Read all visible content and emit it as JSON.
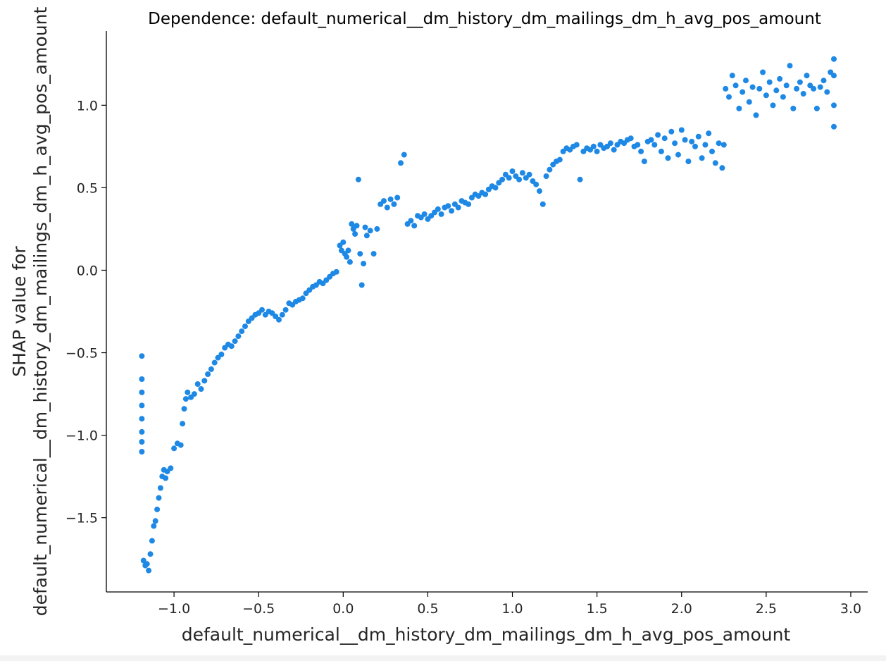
{
  "chart_data": {
    "type": "scatter",
    "title": "Dependence: default_numerical__dm_history_dm_mailings_dm_h_avg_pos_amount",
    "xlabel": "default_numerical__dm_history_dm_mailings_dm_h_avg_pos_amount",
    "ylabel_lines": [
      "SHAP value for",
      "default_numerical__dm_history_dm_mailings_dm_h_avg_pos_amount"
    ],
    "xlim": [
      -1.4,
      3.1
    ],
    "ylim": [
      -1.95,
      1.45
    ],
    "xticks": [
      -1.0,
      -0.5,
      0.0,
      0.5,
      1.0,
      1.5,
      2.0,
      2.5,
      3.0
    ],
    "xtick_labels": [
      "−1.0",
      "−0.5",
      "0.0",
      "0.5",
      "1.0",
      "1.5",
      "2.0",
      "2.5",
      "3.0"
    ],
    "yticks": [
      -1.5,
      -1.0,
      -0.5,
      0.0,
      0.5,
      1.0
    ],
    "ytick_labels": [
      "−1.5",
      "−1.0",
      "−0.5",
      "0.0",
      "0.5",
      "1.0"
    ],
    "grid": false,
    "point_color": "#1e88e5",
    "series": [
      {
        "points": [
          [
            -1.19,
            -0.52
          ],
          [
            -1.19,
            -0.66
          ],
          [
            -1.19,
            -0.74
          ],
          [
            -1.19,
            -0.82
          ],
          [
            -1.19,
            -0.9
          ],
          [
            -1.19,
            -0.98
          ],
          [
            -1.19,
            -1.04
          ],
          [
            -1.19,
            -1.1
          ],
          [
            -1.18,
            -1.76
          ],
          [
            -1.17,
            -1.79
          ],
          [
            -1.16,
            -1.78
          ],
          [
            -1.15,
            -1.82
          ],
          [
            -1.14,
            -1.72
          ],
          [
            -1.13,
            -1.64
          ],
          [
            -1.12,
            -1.55
          ],
          [
            -1.11,
            -1.52
          ],
          [
            -1.1,
            -1.45
          ],
          [
            -1.09,
            -1.38
          ],
          [
            -1.08,
            -1.32
          ],
          [
            -1.07,
            -1.25
          ],
          [
            -1.06,
            -1.21
          ],
          [
            -1.05,
            -1.26
          ],
          [
            -1.04,
            -1.22
          ],
          [
            -1.02,
            -1.2
          ],
          [
            -1.0,
            -1.08
          ],
          [
            -0.98,
            -1.05
          ],
          [
            -0.96,
            -1.06
          ],
          [
            -0.95,
            -0.93
          ],
          [
            -0.94,
            -0.84
          ],
          [
            -0.93,
            -0.78
          ],
          [
            -0.92,
            -0.74
          ],
          [
            -0.9,
            -0.77
          ],
          [
            -0.88,
            -0.75
          ],
          [
            -0.86,
            -0.69
          ],
          [
            -0.84,
            -0.72
          ],
          [
            -0.82,
            -0.67
          ],
          [
            -0.8,
            -0.63
          ],
          [
            -0.78,
            -0.6
          ],
          [
            -0.76,
            -0.56
          ],
          [
            -0.74,
            -0.53
          ],
          [
            -0.72,
            -0.51
          ],
          [
            -0.7,
            -0.47
          ],
          [
            -0.68,
            -0.45
          ],
          [
            -0.66,
            -0.46
          ],
          [
            -0.64,
            -0.43
          ],
          [
            -0.62,
            -0.4
          ],
          [
            -0.6,
            -0.37
          ],
          [
            -0.58,
            -0.34
          ],
          [
            -0.56,
            -0.31
          ],
          [
            -0.54,
            -0.29
          ],
          [
            -0.52,
            -0.27
          ],
          [
            -0.5,
            -0.26
          ],
          [
            -0.48,
            -0.24
          ],
          [
            -0.46,
            -0.27
          ],
          [
            -0.44,
            -0.25
          ],
          [
            -0.42,
            -0.26
          ],
          [
            -0.4,
            -0.28
          ],
          [
            -0.38,
            -0.3
          ],
          [
            -0.36,
            -0.27
          ],
          [
            -0.34,
            -0.24
          ],
          [
            -0.32,
            -0.2
          ],
          [
            -0.3,
            -0.21
          ],
          [
            -0.28,
            -0.19
          ],
          [
            -0.26,
            -0.18
          ],
          [
            -0.24,
            -0.17
          ],
          [
            -0.22,
            -0.14
          ],
          [
            -0.2,
            -0.12
          ],
          [
            -0.18,
            -0.1
          ],
          [
            -0.16,
            -0.09
          ],
          [
            -0.14,
            -0.07
          ],
          [
            -0.12,
            -0.08
          ],
          [
            -0.1,
            -0.06
          ],
          [
            -0.08,
            -0.04
          ],
          [
            -0.06,
            -0.02
          ],
          [
            -0.04,
            -0.01
          ],
          [
            -0.02,
            0.15
          ],
          [
            -0.01,
            0.12
          ],
          [
            0.0,
            0.17
          ],
          [
            0.01,
            0.1
          ],
          [
            0.02,
            0.08
          ],
          [
            0.03,
            0.12
          ],
          [
            0.04,
            0.05
          ],
          [
            0.05,
            0.28
          ],
          [
            0.06,
            0.25
          ],
          [
            0.07,
            0.22
          ],
          [
            0.08,
            0.27
          ],
          [
            0.09,
            0.55
          ],
          [
            0.1,
            0.1
          ],
          [
            0.11,
            -0.09
          ],
          [
            0.12,
            0.04
          ],
          [
            0.13,
            0.26
          ],
          [
            0.14,
            0.21
          ],
          [
            0.16,
            0.24
          ],
          [
            0.18,
            0.1
          ],
          [
            0.2,
            0.25
          ],
          [
            0.22,
            0.4
          ],
          [
            0.24,
            0.42
          ],
          [
            0.26,
            0.38
          ],
          [
            0.28,
            0.43
          ],
          [
            0.3,
            0.4
          ],
          [
            0.32,
            0.44
          ],
          [
            0.34,
            0.65
          ],
          [
            0.36,
            0.7
          ],
          [
            0.38,
            0.28
          ],
          [
            0.4,
            0.3
          ],
          [
            0.42,
            0.27
          ],
          [
            0.44,
            0.33
          ],
          [
            0.46,
            0.32
          ],
          [
            0.48,
            0.34
          ],
          [
            0.5,
            0.31
          ],
          [
            0.52,
            0.33
          ],
          [
            0.54,
            0.35
          ],
          [
            0.56,
            0.37
          ],
          [
            0.58,
            0.34
          ],
          [
            0.6,
            0.38
          ],
          [
            0.62,
            0.39
          ],
          [
            0.64,
            0.36
          ],
          [
            0.66,
            0.4
          ],
          [
            0.68,
            0.38
          ],
          [
            0.7,
            0.42
          ],
          [
            0.72,
            0.41
          ],
          [
            0.74,
            0.4
          ],
          [
            0.76,
            0.44
          ],
          [
            0.78,
            0.46
          ],
          [
            0.8,
            0.45
          ],
          [
            0.82,
            0.47
          ],
          [
            0.84,
            0.46
          ],
          [
            0.86,
            0.49
          ],
          [
            0.88,
            0.51
          ],
          [
            0.9,
            0.5
          ],
          [
            0.92,
            0.53
          ],
          [
            0.94,
            0.55
          ],
          [
            0.96,
            0.58
          ],
          [
            0.98,
            0.56
          ],
          [
            1.0,
            0.6
          ],
          [
            1.02,
            0.57
          ],
          [
            1.04,
            0.55
          ],
          [
            1.06,
            0.59
          ],
          [
            1.08,
            0.56
          ],
          [
            1.1,
            0.58
          ],
          [
            1.12,
            0.54
          ],
          [
            1.14,
            0.52
          ],
          [
            1.16,
            0.48
          ],
          [
            1.18,
            0.4
          ],
          [
            1.2,
            0.57
          ],
          [
            1.22,
            0.61
          ],
          [
            1.24,
            0.64
          ],
          [
            1.26,
            0.66
          ],
          [
            1.28,
            0.67
          ],
          [
            1.3,
            0.72
          ],
          [
            1.32,
            0.74
          ],
          [
            1.34,
            0.73
          ],
          [
            1.36,
            0.75
          ],
          [
            1.38,
            0.76
          ],
          [
            1.4,
            0.55
          ],
          [
            1.42,
            0.72
          ],
          [
            1.44,
            0.74
          ],
          [
            1.46,
            0.73
          ],
          [
            1.48,
            0.75
          ],
          [
            1.5,
            0.72
          ],
          [
            1.52,
            0.76
          ],
          [
            1.54,
            0.74
          ],
          [
            1.56,
            0.75
          ],
          [
            1.58,
            0.77
          ],
          [
            1.6,
            0.73
          ],
          [
            1.62,
            0.76
          ],
          [
            1.64,
            0.78
          ],
          [
            1.66,
            0.77
          ],
          [
            1.68,
            0.79
          ],
          [
            1.7,
            0.8
          ],
          [
            1.72,
            0.75
          ],
          [
            1.74,
            0.76
          ],
          [
            1.76,
            0.72
          ],
          [
            1.78,
            0.66
          ],
          [
            1.8,
            0.78
          ],
          [
            1.82,
            0.79
          ],
          [
            1.84,
            0.76
          ],
          [
            1.86,
            0.82
          ],
          [
            1.88,
            0.72
          ],
          [
            1.9,
            0.8
          ],
          [
            1.92,
            0.68
          ],
          [
            1.94,
            0.84
          ],
          [
            1.96,
            0.77
          ],
          [
            1.98,
            0.7
          ],
          [
            2.0,
            0.85
          ],
          [
            2.02,
            0.79
          ],
          [
            2.04,
            0.66
          ],
          [
            2.06,
            0.78
          ],
          [
            2.08,
            0.75
          ],
          [
            2.1,
            0.81
          ],
          [
            2.12,
            0.68
          ],
          [
            2.14,
            0.76
          ],
          [
            2.16,
            0.83
          ],
          [
            2.18,
            0.72
          ],
          [
            2.2,
            0.65
          ],
          [
            2.22,
            0.77
          ],
          [
            2.24,
            0.62
          ],
          [
            2.25,
            0.76
          ],
          [
            2.26,
            1.1
          ],
          [
            2.28,
            1.05
          ],
          [
            2.3,
            1.18
          ],
          [
            2.32,
            1.12
          ],
          [
            2.34,
            0.98
          ],
          [
            2.36,
            1.08
          ],
          [
            2.38,
            1.15
          ],
          [
            2.4,
            1.02
          ],
          [
            2.42,
            1.11
          ],
          [
            2.44,
            0.94
          ],
          [
            2.46,
            1.1
          ],
          [
            2.48,
            1.2
          ],
          [
            2.5,
            1.06
          ],
          [
            2.52,
            1.14
          ],
          [
            2.54,
            1.0
          ],
          [
            2.56,
            1.09
          ],
          [
            2.58,
            1.16
          ],
          [
            2.6,
            1.05
          ],
          [
            2.62,
            1.12
          ],
          [
            2.64,
            1.24
          ],
          [
            2.66,
            0.98
          ],
          [
            2.68,
            1.1
          ],
          [
            2.7,
            1.14
          ],
          [
            2.72,
            1.07
          ],
          [
            2.74,
            1.18
          ],
          [
            2.76,
            1.12
          ],
          [
            2.78,
            1.1
          ],
          [
            2.8,
            0.98
          ],
          [
            2.82,
            1.11
          ],
          [
            2.84,
            1.15
          ],
          [
            2.86,
            1.08
          ],
          [
            2.88,
            1.2
          ],
          [
            2.9,
            1.28
          ],
          [
            2.9,
            0.87
          ],
          [
            2.9,
            1.0
          ],
          [
            2.9,
            1.18
          ]
        ]
      }
    ]
  }
}
